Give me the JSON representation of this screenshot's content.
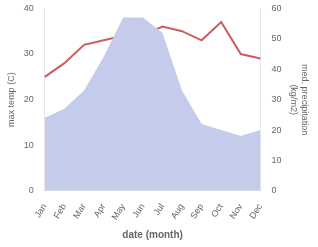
{
  "chart_data": {
    "type": "line",
    "categories": [
      "Jan",
      "Feb",
      "Mar",
      "Apr",
      "May",
      "Jun",
      "Jul",
      "Aug",
      "Sep",
      "Oct",
      "Nov",
      "Dec"
    ],
    "series": [
      {
        "type": "area",
        "color": "#c5cceb",
        "axis": "y2",
        "values": [
          24,
          27,
          33,
          44,
          57,
          57,
          52,
          33,
          22,
          20,
          18,
          20
        ]
      },
      {
        "type": "line",
        "color": "#cd5c5c",
        "values": [
          25,
          28,
          32,
          33,
          34,
          34,
          36,
          35,
          33,
          37,
          30,
          29
        ]
      }
    ],
    "xlabel": "date (month)",
    "ylabel": "max temp (C)",
    "y2label": "med. precipitation\n(kg/m2)",
    "ylim": [
      0,
      40
    ],
    "yticks": [
      0,
      10,
      20,
      30,
      40
    ],
    "y2lim": [
      0,
      60
    ],
    "y2ticks": [
      0,
      10,
      20,
      30,
      40,
      50,
      60
    ],
    "grid": false
  }
}
